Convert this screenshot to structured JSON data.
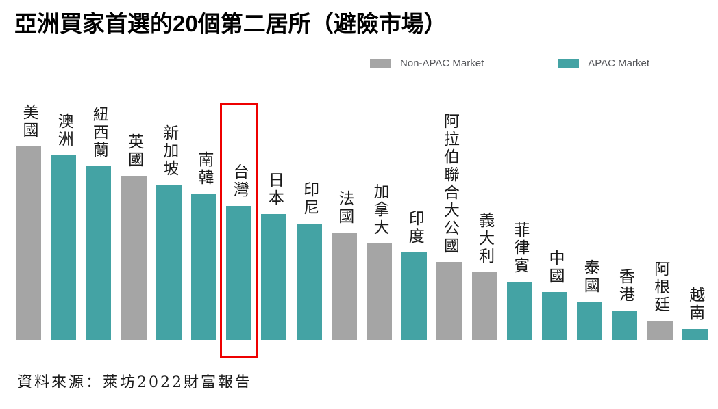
{
  "title": "亞洲買家首選的20個第二居所（避險市場）",
  "legend": {
    "items": [
      {
        "label": "Non-APAC Market",
        "color": "#a5a5a5"
      },
      {
        "label": "APAC Market",
        "color": "#44a3a4"
      }
    ]
  },
  "source": "資料來源：萊坊2022財富報告",
  "colors": {
    "non_apac": "#a5a5a5",
    "apac": "#44a3a4",
    "highlight_box": "#ee0000",
    "label_text": "#1a1a1a",
    "legend_text": "#55565a"
  },
  "chart_data": {
    "type": "bar",
    "title": "亞洲買家首選的20個第二居所（避險市場）",
    "xlabel": "",
    "ylabel": "",
    "grid": false,
    "legend_position": "top-right",
    "axis_note": "ranking chart, no numeric axis shown; values are relative bar heights in screen px",
    "categories": [
      "美國",
      "澳洲",
      "紐西蘭",
      "英國",
      "新加坡",
      "南韓",
      "台灣",
      "日本",
      "印尼",
      "法國",
      "加拿大",
      "印度",
      "阿拉伯聯合大公國",
      "義大利",
      "菲律賓",
      "中國",
      "泰國",
      "香港",
      "阿根廷",
      "越南"
    ],
    "categories_en": [
      "USA",
      "Australia",
      "New Zealand",
      "UK",
      "Singapore",
      "South Korea",
      "Taiwan",
      "Japan",
      "Indonesia",
      "France",
      "Canada",
      "India",
      "UAE",
      "Italy",
      "Philippines",
      "China",
      "Thailand",
      "Hong Kong",
      "Argentina",
      "Vietnam"
    ],
    "markets": [
      "Non-APAC",
      "APAC",
      "APAC",
      "Non-APAC",
      "APAC",
      "APAC",
      "APAC",
      "APAC",
      "APAC",
      "Non-APAC",
      "Non-APAC",
      "APAC",
      "Non-APAC",
      "Non-APAC",
      "APAC",
      "APAC",
      "APAC",
      "APAC",
      "Non-APAC",
      "APAC"
    ],
    "values": [
      283,
      270,
      254,
      240,
      227,
      214,
      196,
      184,
      170,
      157,
      141,
      128,
      114,
      99,
      85,
      70,
      56,
      43,
      28,
      16
    ],
    "highlighted_category": "台灣",
    "series": [
      {
        "name": "Non-APAC Market",
        "color": "#a5a5a5"
      },
      {
        "name": "APAC Market",
        "color": "#44a3a4"
      }
    ]
  }
}
